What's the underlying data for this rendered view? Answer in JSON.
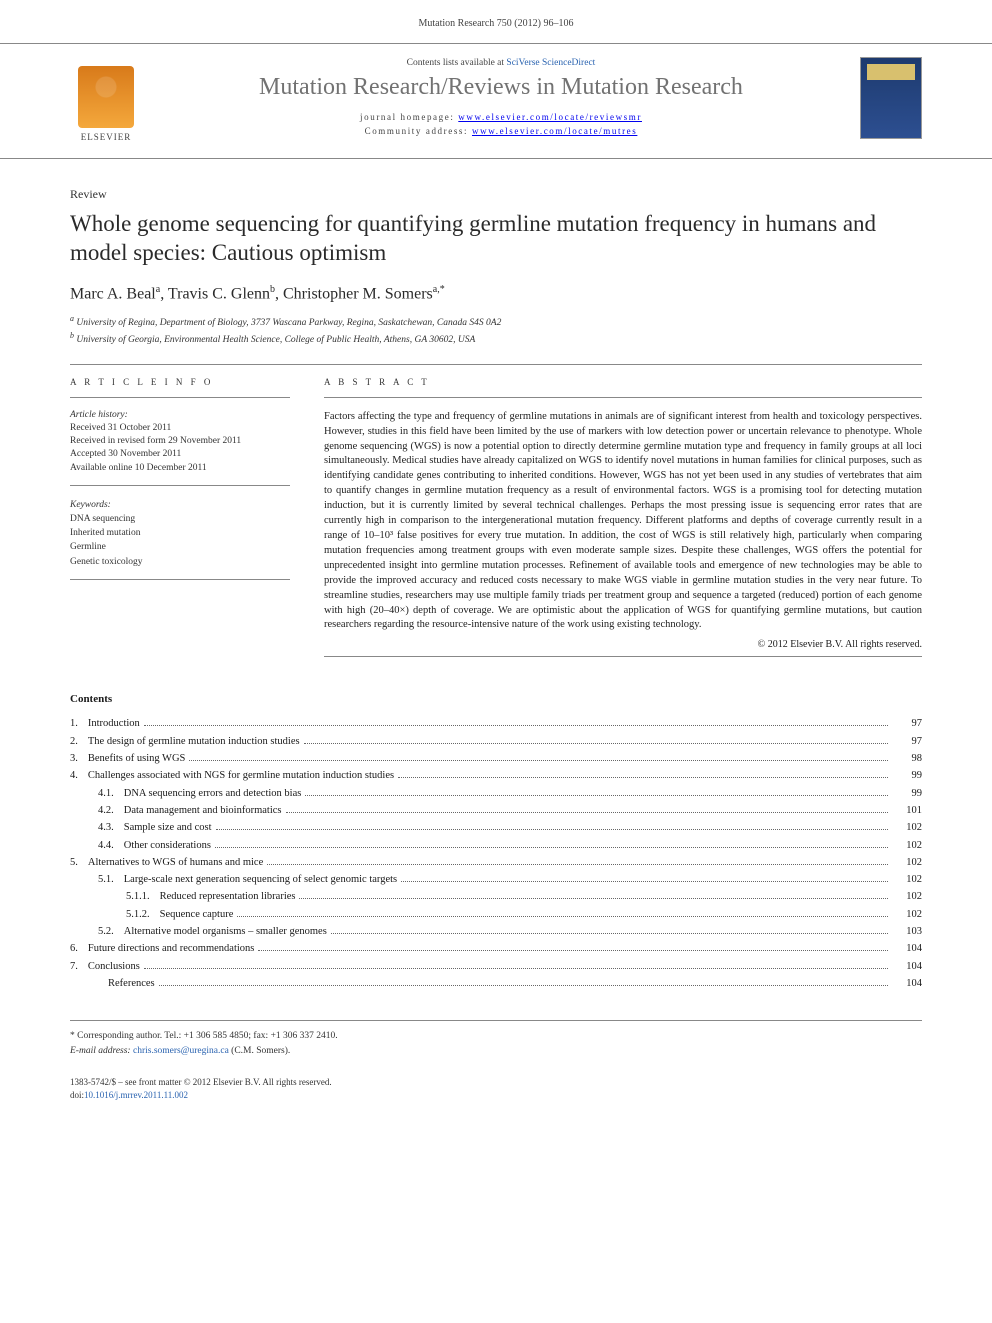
{
  "page_header": "Mutation Research 750 (2012) 96–106",
  "masthead": {
    "contents_prefix": "Contents lists available at ",
    "contents_link": "SciVerse ScienceDirect",
    "journal_title": "Mutation Research/Reviews in Mutation Research",
    "homepage_label": "journal homepage: ",
    "homepage_url": "www.elsevier.com/locate/reviewsmr",
    "community_label": "Community address: ",
    "community_url": "www.elsevier.com/locate/mutres",
    "publisher": "ELSEVIER"
  },
  "article": {
    "type": "Review",
    "title": "Whole genome sequencing for quantifying germline mutation frequency in humans and model species: Cautious optimism",
    "authors_html": "Marc A. Beal<sup>a</sup>, Travis C. Glenn<sup>b</sup>, Christopher M. Somers<sup>a,*</sup>",
    "affiliations": [
      "a University of Regina, Department of Biology, 3737 Wascana Parkway, Regina, Saskatchewan, Canada S4S 0A2",
      "b University of Georgia, Environmental Health Science, College of Public Health, Athens, GA 30602, USA"
    ]
  },
  "article_info": {
    "heading": "A R T I C L E  I N F O",
    "history_label": "Article history:",
    "history": [
      "Received 31 October 2011",
      "Received in revised form 29 November 2011",
      "Accepted 30 November 2011",
      "Available online 10 December 2011"
    ],
    "keywords_label": "Keywords:",
    "keywords": [
      "DNA sequencing",
      "Inherited mutation",
      "Germline",
      "Genetic toxicology"
    ]
  },
  "abstract": {
    "heading": "A B S T R A C T",
    "body": "Factors affecting the type and frequency of germline mutations in animals are of significant interest from health and toxicology perspectives. However, studies in this field have been limited by the use of markers with low detection power or uncertain relevance to phenotype. Whole genome sequencing (WGS) is now a potential option to directly determine germline mutation type and frequency in family groups at all loci simultaneously. Medical studies have already capitalized on WGS to identify novel mutations in human families for clinical purposes, such as identifying candidate genes contributing to inherited conditions. However, WGS has not yet been used in any studies of vertebrates that aim to quantify changes in germline mutation frequency as a result of environmental factors. WGS is a promising tool for detecting mutation induction, but it is currently limited by several technical challenges. Perhaps the most pressing issue is sequencing error rates that are currently high in comparison to the intergenerational mutation frequency. Different platforms and depths of coverage currently result in a range of 10–10³ false positives for every true mutation. In addition, the cost of WGS is still relatively high, particularly when comparing mutation frequencies among treatment groups with even moderate sample sizes. Despite these challenges, WGS offers the potential for unprecedented insight into germline mutation processes. Refinement of available tools and emergence of new technologies may be able to provide the improved accuracy and reduced costs necessary to make WGS viable in germline mutation studies in the very near future. To streamline studies, researchers may use multiple family triads per treatment group and sequence a targeted (reduced) portion of each genome with high (20–40×) depth of coverage. We are optimistic about the application of WGS for quantifying germline mutations, but caution researchers regarding the resource-intensive nature of the work using existing technology.",
    "copyright": "© 2012 Elsevier B.V. All rights reserved."
  },
  "contents": {
    "heading": "Contents",
    "items": [
      {
        "num": "1.",
        "title": "Introduction",
        "page": "97",
        "indent": 0
      },
      {
        "num": "2.",
        "title": "The design of germline mutation induction studies",
        "page": "97",
        "indent": 0
      },
      {
        "num": "3.",
        "title": "Benefits of using WGS",
        "page": "98",
        "indent": 0
      },
      {
        "num": "4.",
        "title": "Challenges associated with NGS for germline mutation induction studies",
        "page": "99",
        "indent": 0
      },
      {
        "num": "4.1.",
        "title": "DNA sequencing errors and detection bias",
        "page": "99",
        "indent": 1
      },
      {
        "num": "4.2.",
        "title": "Data management and bioinformatics",
        "page": "101",
        "indent": 1
      },
      {
        "num": "4.3.",
        "title": "Sample size and cost",
        "page": "102",
        "indent": 1
      },
      {
        "num": "4.4.",
        "title": "Other considerations",
        "page": "102",
        "indent": 1
      },
      {
        "num": "5.",
        "title": "Alternatives to WGS of humans and mice",
        "page": "102",
        "indent": 0
      },
      {
        "num": "5.1.",
        "title": "Large-scale next generation sequencing of select genomic targets",
        "page": "102",
        "indent": 1
      },
      {
        "num": "5.1.1.",
        "title": "Reduced representation libraries",
        "page": "102",
        "indent": 2
      },
      {
        "num": "5.1.2.",
        "title": "Sequence capture",
        "page": "102",
        "indent": 2
      },
      {
        "num": "5.2.",
        "title": "Alternative model organisms – smaller genomes",
        "page": "103",
        "indent": 1
      },
      {
        "num": "6.",
        "title": "Future directions and recommendations",
        "page": "104",
        "indent": 0
      },
      {
        "num": "7.",
        "title": "Conclusions",
        "page": "104",
        "indent": 0
      },
      {
        "num": "",
        "title": "References",
        "page": "104",
        "indent": 1
      }
    ]
  },
  "footnotes": {
    "corresponding": "* Corresponding author. Tel.: +1 306 585 4850; fax: +1 306 337 2410.",
    "email_label": "E-mail address: ",
    "email": "chris.somers@uregina.ca",
    "email_suffix": " (C.M. Somers)."
  },
  "footer": {
    "line1": "1383-5742/$ – see front matter © 2012 Elsevier B.V. All rights reserved.",
    "doi_label": "doi:",
    "doi": "10.1016/j.mrrev.2011.11.002"
  },
  "colors": {
    "link": "#2a63b0",
    "text": "#1a1a1a",
    "rule": "#888888",
    "elsevier_orange": "#e58a1f",
    "journal_grey": "#727272"
  },
  "typography": {
    "body_pt": 10.5,
    "title_pt": 23,
    "journal_title_pt": 24,
    "authors_pt": 16,
    "small_pt": 9.5
  }
}
